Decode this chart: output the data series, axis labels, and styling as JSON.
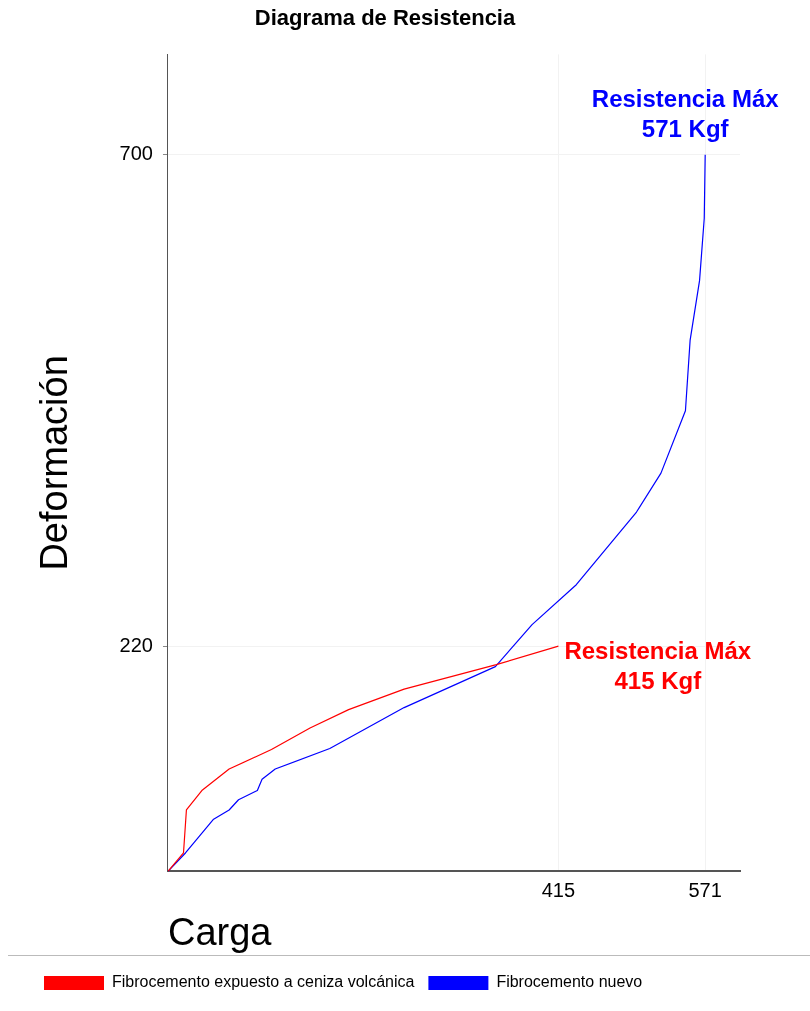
{
  "chart_data": {
    "type": "line",
    "title": "Diagrama de Resistencia",
    "xlabel": "Carga",
    "ylabel": "Deformación",
    "xlim": [
      0,
      608
    ],
    "ylim": [
      0,
      798
    ],
    "xticks": [
      415,
      571
    ],
    "yticks": [
      220,
      700
    ],
    "grid": true,
    "legend": "bottom",
    "series": [
      {
        "name": "Fibrocemento expuesto a ceniza volcánica",
        "color": "#ff0000",
        "x": [
          0,
          16.5,
          19.6,
          36,
          65,
          110,
          151,
          192,
          251,
          349,
          415
        ],
        "values": [
          0,
          18,
          60,
          79,
          100,
          119,
          140,
          158,
          178,
          202,
          220
        ]
      },
      {
        "name": "Fibrocemento nuevo",
        "color": "#0000ff",
        "x": [
          0,
          18.6,
          48.5,
          65,
          75,
          95,
          100,
          114,
          172,
          251,
          348,
          387,
          434,
          498,
          524,
          550,
          555,
          565,
          570,
          571
        ],
        "values": [
          0,
          18,
          51,
          60,
          70,
          79,
          90,
          100,
          120,
          160,
          200,
          241,
          280,
          351,
          389,
          450,
          519,
          577,
          638,
          700
        ]
      }
    ],
    "annotations": [
      {
        "text": "Resistencia Máx\n415 Kgf",
        "x": 415,
        "y": 220
      },
      {
        "text": "Resistencia Máx\n571 Kgf",
        "x": 571,
        "y": 700
      }
    ]
  }
}
